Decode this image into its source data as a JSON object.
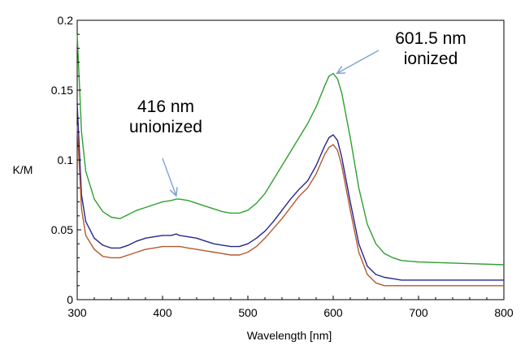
{
  "chart_data": {
    "type": "line",
    "xlabel": "Wavelength [nm]",
    "ylabel": "K/M",
    "xlim": [
      300,
      800
    ],
    "ylim": [
      0,
      0.2
    ],
    "x_ticks": [
      300,
      400,
      500,
      600,
      700,
      800
    ],
    "y_ticks": [
      0,
      0.05,
      0.1,
      0.15,
      0.2
    ],
    "x_tick_labels": [
      "300",
      "400",
      "500",
      "600",
      "700",
      "800"
    ],
    "y_tick_labels": [
      "0",
      "0.05",
      "0.1",
      "0.15",
      "0.2"
    ],
    "grid": false,
    "series": [
      {
        "color": "#2ea02e",
        "x": [
          300,
          305,
          310,
          320,
          330,
          340,
          350,
          360,
          370,
          380,
          390,
          400,
          410,
          416,
          420,
          430,
          440,
          450,
          460,
          470,
          480,
          490,
          500,
          510,
          520,
          530,
          540,
          550,
          560,
          570,
          580,
          590,
          595,
          600,
          605,
          610,
          620,
          630,
          640,
          650,
          660,
          670,
          680,
          700,
          750,
          800
        ],
        "y": [
          0.19,
          0.12,
          0.092,
          0.072,
          0.063,
          0.059,
          0.058,
          0.061,
          0.064,
          0.066,
          0.068,
          0.07,
          0.071,
          0.072,
          0.072,
          0.071,
          0.069,
          0.067,
          0.065,
          0.063,
          0.062,
          0.062,
          0.064,
          0.069,
          0.076,
          0.086,
          0.096,
          0.106,
          0.116,
          0.126,
          0.138,
          0.153,
          0.16,
          0.162,
          0.158,
          0.148,
          0.116,
          0.08,
          0.054,
          0.04,
          0.033,
          0.03,
          0.028,
          0.027,
          0.026,
          0.025
        ]
      },
      {
        "color": "#26268c",
        "x": [
          300,
          305,
          310,
          320,
          330,
          340,
          350,
          360,
          370,
          380,
          390,
          400,
          410,
          416,
          420,
          430,
          440,
          450,
          460,
          470,
          480,
          490,
          500,
          510,
          520,
          530,
          540,
          550,
          560,
          570,
          580,
          590,
          595,
          600,
          605,
          610,
          620,
          630,
          640,
          650,
          660,
          670,
          680,
          700,
          750,
          800
        ],
        "y": [
          0.14,
          0.075,
          0.056,
          0.044,
          0.039,
          0.037,
          0.037,
          0.039,
          0.042,
          0.044,
          0.045,
          0.046,
          0.046,
          0.047,
          0.046,
          0.045,
          0.044,
          0.042,
          0.04,
          0.039,
          0.038,
          0.038,
          0.04,
          0.044,
          0.049,
          0.056,
          0.064,
          0.072,
          0.079,
          0.085,
          0.096,
          0.11,
          0.116,
          0.118,
          0.114,
          0.102,
          0.07,
          0.04,
          0.024,
          0.018,
          0.016,
          0.015,
          0.014,
          0.014,
          0.014,
          0.014
        ]
      },
      {
        "color": "#b5582f",
        "x": [
          300,
          305,
          310,
          320,
          330,
          340,
          350,
          360,
          370,
          380,
          390,
          400,
          410,
          416,
          420,
          430,
          440,
          450,
          460,
          470,
          480,
          490,
          500,
          510,
          520,
          530,
          540,
          550,
          560,
          570,
          580,
          590,
          595,
          600,
          605,
          610,
          620,
          630,
          640,
          650,
          660,
          670,
          680,
          700,
          750,
          800
        ],
        "y": [
          0.125,
          0.065,
          0.046,
          0.036,
          0.031,
          0.03,
          0.03,
          0.032,
          0.034,
          0.036,
          0.037,
          0.038,
          0.038,
          0.038,
          0.038,
          0.037,
          0.036,
          0.035,
          0.034,
          0.033,
          0.032,
          0.032,
          0.034,
          0.038,
          0.044,
          0.051,
          0.058,
          0.066,
          0.074,
          0.08,
          0.09,
          0.104,
          0.109,
          0.111,
          0.107,
          0.096,
          0.064,
          0.034,
          0.018,
          0.012,
          0.01,
          0.01,
          0.01,
          0.01,
          0.01,
          0.01
        ]
      }
    ],
    "annotations": [
      {
        "lines": [
          "416 nm",
          "unionized"
        ],
        "x": 416,
        "y": 0.072
      },
      {
        "lines": [
          "601.5 nm",
          "ionized"
        ],
        "x": 601.5,
        "y": 0.162
      }
    ],
    "arrow_color": "#7fa3d4"
  }
}
